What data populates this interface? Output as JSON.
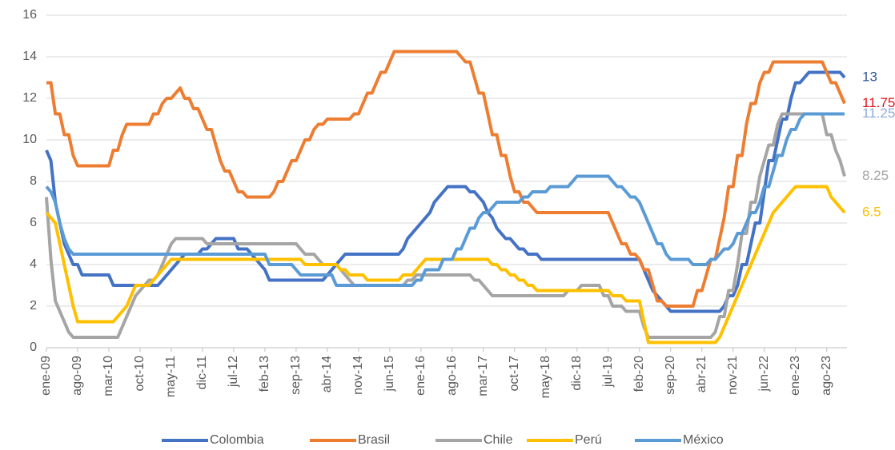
{
  "chart_data": {
    "type": "line",
    "categories": [
      "ene-09",
      null,
      null,
      null,
      null,
      null,
      null,
      "ago-09",
      null,
      null,
      null,
      null,
      null,
      null,
      "mar-10",
      null,
      null,
      null,
      null,
      null,
      null,
      "oct-10",
      null,
      null,
      null,
      null,
      null,
      null,
      "may-11",
      null,
      null,
      null,
      null,
      null,
      null,
      "dic-11",
      null,
      null,
      null,
      null,
      null,
      null,
      "jul-12",
      null,
      null,
      null,
      null,
      null,
      null,
      "feb-13",
      null,
      null,
      null,
      null,
      null,
      null,
      "sep-13",
      null,
      null,
      null,
      null,
      null,
      null,
      "abr-14",
      null,
      null,
      null,
      null,
      null,
      null,
      "nov-14",
      null,
      null,
      null,
      null,
      null,
      null,
      "jun-15",
      null,
      null,
      null,
      null,
      null,
      null,
      "ene-16",
      null,
      null,
      null,
      null,
      null,
      null,
      "ago-16",
      null,
      null,
      null,
      null,
      null,
      null,
      "mar-17",
      null,
      null,
      null,
      null,
      null,
      null,
      "oct-17",
      null,
      null,
      null,
      null,
      null,
      null,
      "may-18",
      null,
      null,
      null,
      null,
      null,
      null,
      "dic-18",
      null,
      null,
      null,
      null,
      null,
      null,
      "jul-19",
      null,
      null,
      null,
      null,
      null,
      null,
      "feb-20",
      null,
      null,
      null,
      null,
      null,
      null,
      "sep-20",
      null,
      null,
      null,
      null,
      null,
      null,
      "abr-21",
      null,
      null,
      null,
      null,
      null,
      null,
      "nov-21",
      null,
      null,
      null,
      null,
      null,
      null,
      "jun-22",
      null,
      null,
      null,
      null,
      null,
      null,
      "ene-23",
      null,
      null,
      null,
      null,
      null,
      null,
      "ago-23",
      null,
      null,
      null,
      null
    ],
    "ylim": [
      0,
      16
    ],
    "yticks": [
      0,
      2,
      4,
      6,
      8,
      10,
      12,
      14,
      16
    ],
    "grid": true,
    "legend": "bottom",
    "series": [
      {
        "name": "Colombia",
        "color": "#4472c4",
        "end_label": "13",
        "end_label_color": "#2f5597",
        "values": [
          9.5,
          9,
          7,
          6,
          5,
          4.5,
          4,
          4,
          3.5,
          3.5,
          3.5,
          3.5,
          3.5,
          3.5,
          3.5,
          3,
          3,
          3,
          3,
          3,
          3,
          3,
          3,
          3,
          3,
          3,
          3.25,
          3.5,
          3.75,
          4,
          4.25,
          4.5,
          4.5,
          4.5,
          4.5,
          4.75,
          4.75,
          5,
          5.25,
          5.25,
          5.25,
          5.25,
          5.25,
          4.75,
          4.75,
          4.75,
          4.5,
          4.25,
          4,
          3.75,
          3.25,
          3.25,
          3.25,
          3.25,
          3.25,
          3.25,
          3.25,
          3.25,
          3.25,
          3.25,
          3.25,
          3.25,
          3.25,
          3.5,
          3.75,
          4,
          4.25,
          4.5,
          4.5,
          4.5,
          4.5,
          4.5,
          4.5,
          4.5,
          4.5,
          4.5,
          4.5,
          4.5,
          4.5,
          4.5,
          4.75,
          5.25,
          5.5,
          5.75,
          6,
          6.25,
          6.5,
          7,
          7.25,
          7.5,
          7.75,
          7.75,
          7.75,
          7.75,
          7.75,
          7.5,
          7.5,
          7.25,
          7,
          6.5,
          6.25,
          5.75,
          5.5,
          5.25,
          5.25,
          5,
          4.75,
          4.75,
          4.5,
          4.5,
          4.5,
          4.25,
          4.25,
          4.25,
          4.25,
          4.25,
          4.25,
          4.25,
          4.25,
          4.25,
          4.25,
          4.25,
          4.25,
          4.25,
          4.25,
          4.25,
          4.25,
          4.25,
          4.25,
          4.25,
          4.25,
          4.25,
          4.25,
          4.25,
          3.75,
          3.25,
          2.75,
          2.5,
          2.25,
          2,
          1.75,
          1.75,
          1.75,
          1.75,
          1.75,
          1.75,
          1.75,
          1.75,
          1.75,
          1.75,
          1.75,
          1.75,
          2,
          2.5,
          2.5,
          3,
          4,
          4,
          5,
          6,
          6,
          7.5,
          9,
          9,
          10,
          11,
          11,
          12,
          12.75,
          12.75,
          13,
          13.25,
          13.25,
          13.25,
          13.25,
          13.25,
          13.25,
          13.25,
          13.25,
          13
        ]
      },
      {
        "name": "Brasil",
        "color": "#ed7d31",
        "end_label": "11.75",
        "end_label_color": "#e0101a",
        "values": [
          12.75,
          12.75,
          11.25,
          11.25,
          10.25,
          10.25,
          9.25,
          8.75,
          8.75,
          8.75,
          8.75,
          8.75,
          8.75,
          8.75,
          8.75,
          9.5,
          9.5,
          10.25,
          10.75,
          10.75,
          10.75,
          10.75,
          10.75,
          10.75,
          11.25,
          11.25,
          11.75,
          12,
          12,
          12.25,
          12.5,
          12,
          12,
          11.5,
          11.5,
          11,
          10.5,
          10.5,
          9.75,
          9,
          8.5,
          8.5,
          8,
          7.5,
          7.5,
          7.25,
          7.25,
          7.25,
          7.25,
          7.25,
          7.25,
          7.5,
          8,
          8,
          8.5,
          9,
          9,
          9.5,
          10,
          10,
          10.5,
          10.75,
          10.75,
          11,
          11,
          11,
          11,
          11,
          11,
          11.25,
          11.25,
          11.75,
          12.25,
          12.25,
          12.75,
          13.25,
          13.25,
          13.75,
          14.25,
          14.25,
          14.25,
          14.25,
          14.25,
          14.25,
          14.25,
          14.25,
          14.25,
          14.25,
          14.25,
          14.25,
          14.25,
          14.25,
          14.25,
          14,
          13.75,
          13.75,
          13,
          12.25,
          12.25,
          11.25,
          10.25,
          10.25,
          9.25,
          9.25,
          8.25,
          7.5,
          7.5,
          7,
          7,
          6.75,
          6.5,
          6.5,
          6.5,
          6.5,
          6.5,
          6.5,
          6.5,
          6.5,
          6.5,
          6.5,
          6.5,
          6.5,
          6.5,
          6.5,
          6.5,
          6.5,
          6.5,
          6,
          5.5,
          5,
          5,
          4.5,
          4.5,
          4.25,
          3.75,
          3.75,
          3,
          2.25,
          2.25,
          2,
          2,
          2,
          2,
          2,
          2,
          2,
          2.75,
          2.75,
          3.5,
          4.25,
          4.25,
          5.25,
          6.25,
          7.75,
          7.75,
          9.25,
          9.25,
          10.75,
          11.75,
          11.75,
          12.75,
          13.25,
          13.25,
          13.75,
          13.75,
          13.75,
          13.75,
          13.75,
          13.75,
          13.75,
          13.75,
          13.75,
          13.75,
          13.75,
          13.75,
          13.25,
          12.75,
          12.75,
          12.25,
          11.75
        ]
      },
      {
        "name": "Chile",
        "color": "#a5a5a5",
        "end_label": "8.25",
        "end_label_color": "#a5a5a5",
        "values": [
          7.25,
          4.25,
          2.25,
          1.75,
          1.25,
          0.75,
          0.5,
          0.5,
          0.5,
          0.5,
          0.5,
          0.5,
          0.5,
          0.5,
          0.5,
          0.5,
          0.5,
          1,
          1.5,
          2,
          2.5,
          2.75,
          3,
          3.25,
          3.25,
          3.5,
          4,
          4.5,
          5,
          5.25,
          5.25,
          5.25,
          5.25,
          5.25,
          5.25,
          5.25,
          5,
          5,
          5,
          5,
          5,
          5,
          5,
          5,
          5,
          5,
          5,
          5,
          5,
          5,
          5,
          5,
          5,
          5,
          5,
          5,
          5,
          4.75,
          4.5,
          4.5,
          4.5,
          4.25,
          4,
          4,
          4,
          4,
          3.75,
          3.5,
          3.25,
          3,
          3,
          3,
          3,
          3,
          3,
          3,
          3,
          3,
          3,
          3,
          3,
          3.25,
          3.25,
          3.5,
          3.5,
          3.5,
          3.5,
          3.5,
          3.5,
          3.5,
          3.5,
          3.5,
          3.5,
          3.5,
          3.5,
          3.5,
          3.25,
          3.25,
          3,
          2.75,
          2.5,
          2.5,
          2.5,
          2.5,
          2.5,
          2.5,
          2.5,
          2.5,
          2.5,
          2.5,
          2.5,
          2.5,
          2.5,
          2.5,
          2.5,
          2.5,
          2.5,
          2.75,
          2.75,
          2.75,
          3,
          3,
          3,
          3,
          3,
          2.5,
          2.5,
          2,
          2,
          2,
          1.75,
          1.75,
          1.75,
          1.75,
          1,
          0.5,
          0.5,
          0.5,
          0.5,
          0.5,
          0.5,
          0.5,
          0.5,
          0.5,
          0.5,
          0.5,
          0.5,
          0.5,
          0.5,
          0.5,
          0.75,
          1.5,
          1.5,
          2.75,
          2.75,
          4,
          5.5,
          5.5,
          7,
          7,
          8.25,
          9,
          9.75,
          9.75,
          10.75,
          11.25,
          11.25,
          11.25,
          11.25,
          11.25,
          11.25,
          11.25,
          11.25,
          11.25,
          11.25,
          10.25,
          10.25,
          9.5,
          9,
          8.25
        ]
      },
      {
        "name": "Perú",
        "color": "#ffc000",
        "end_label": "6.5",
        "end_label_color": "#ffc000",
        "values": [
          6.5,
          6.25,
          6,
          5,
          4,
          3,
          2,
          1.25,
          1.25,
          1.25,
          1.25,
          1.25,
          1.25,
          1.25,
          1.25,
          1.25,
          1.5,
          1.75,
          2,
          2.5,
          3,
          3,
          3,
          3,
          3.25,
          3.5,
          3.75,
          4,
          4.25,
          4.25,
          4.25,
          4.25,
          4.25,
          4.25,
          4.25,
          4.25,
          4.25,
          4.25,
          4.25,
          4.25,
          4.25,
          4.25,
          4.25,
          4.25,
          4.25,
          4.25,
          4.25,
          4.25,
          4.25,
          4.25,
          4.25,
          4.25,
          4.25,
          4.25,
          4.25,
          4.25,
          4.25,
          4.25,
          4,
          4,
          4,
          4,
          4,
          4,
          4,
          4,
          3.75,
          3.75,
          3.5,
          3.5,
          3.5,
          3.5,
          3.25,
          3.25,
          3.25,
          3.25,
          3.25,
          3.25,
          3.25,
          3.25,
          3.5,
          3.5,
          3.5,
          3.75,
          4,
          4.25,
          4.25,
          4.25,
          4.25,
          4.25,
          4.25,
          4.25,
          4.25,
          4.25,
          4.25,
          4.25,
          4.25,
          4.25,
          4.25,
          4.25,
          4,
          4,
          3.75,
          3.75,
          3.5,
          3.5,
          3.25,
          3.25,
          3,
          3,
          2.75,
          2.75,
          2.75,
          2.75,
          2.75,
          2.75,
          2.75,
          2.75,
          2.75,
          2.75,
          2.75,
          2.75,
          2.75,
          2.75,
          2.75,
          2.75,
          2.75,
          2.5,
          2.5,
          2.5,
          2.25,
          2.25,
          2.25,
          2.25,
          1.25,
          0.25,
          0.25,
          0.25,
          0.25,
          0.25,
          0.25,
          0.25,
          0.25,
          0.25,
          0.25,
          0.25,
          0.25,
          0.25,
          0.25,
          0.25,
          0.25,
          0.5,
          1,
          1.5,
          2,
          2.5,
          3,
          3.5,
          4,
          4.5,
          5,
          5.5,
          6,
          6.5,
          6.75,
          7,
          7.25,
          7.5,
          7.75,
          7.75,
          7.75,
          7.75,
          7.75,
          7.75,
          7.75,
          7.75,
          7.25,
          7,
          6.75,
          6.5
        ]
      },
      {
        "name": "México",
        "color": "#5b9bd5",
        "end_label": "11.25",
        "end_label_color": "#8eaadb",
        "values": [
          7.75,
          7.5,
          7,
          6,
          5.25,
          4.75,
          4.5,
          4.5,
          4.5,
          4.5,
          4.5,
          4.5,
          4.5,
          4.5,
          4.5,
          4.5,
          4.5,
          4.5,
          4.5,
          4.5,
          4.5,
          4.5,
          4.5,
          4.5,
          4.5,
          4.5,
          4.5,
          4.5,
          4.5,
          4.5,
          4.5,
          4.5,
          4.5,
          4.5,
          4.5,
          4.5,
          4.5,
          4.5,
          4.5,
          4.5,
          4.5,
          4.5,
          4.5,
          4.5,
          4.5,
          4.5,
          4.5,
          4.5,
          4.5,
          4.5,
          4,
          4,
          4,
          4,
          4,
          4,
          3.75,
          3.5,
          3.5,
          3.5,
          3.5,
          3.5,
          3.5,
          3.5,
          3.5,
          3,
          3,
          3,
          3,
          3,
          3,
          3,
          3,
          3,
          3,
          3,
          3,
          3,
          3,
          3,
          3,
          3,
          3,
          3.25,
          3.25,
          3.75,
          3.75,
          3.75,
          3.75,
          4.25,
          4.25,
          4.25,
          4.75,
          4.75,
          5.25,
          5.75,
          5.75,
          6.25,
          6.5,
          6.5,
          6.75,
          7,
          7,
          7,
          7,
          7,
          7,
          7.25,
          7.25,
          7.5,
          7.5,
          7.5,
          7.5,
          7.75,
          7.75,
          7.75,
          7.75,
          7.75,
          8,
          8.25,
          8.25,
          8.25,
          8.25,
          8.25,
          8.25,
          8.25,
          8.25,
          8,
          7.75,
          7.75,
          7.5,
          7.25,
          7.25,
          7,
          6.5,
          6,
          5.5,
          5,
          5,
          4.5,
          4.25,
          4.25,
          4.25,
          4.25,
          4.25,
          4,
          4,
          4,
          4,
          4.25,
          4.25,
          4.5,
          4.75,
          4.75,
          5,
          5.5,
          5.5,
          6,
          6.5,
          6.5,
          7,
          7.75,
          7.75,
          8.5,
          9.25,
          9.25,
          10,
          10.5,
          10.5,
          11,
          11.25,
          11.25,
          11.25,
          11.25,
          11.25,
          11.25,
          11.25,
          11.25,
          11.25,
          11.25
        ]
      }
    ]
  }
}
